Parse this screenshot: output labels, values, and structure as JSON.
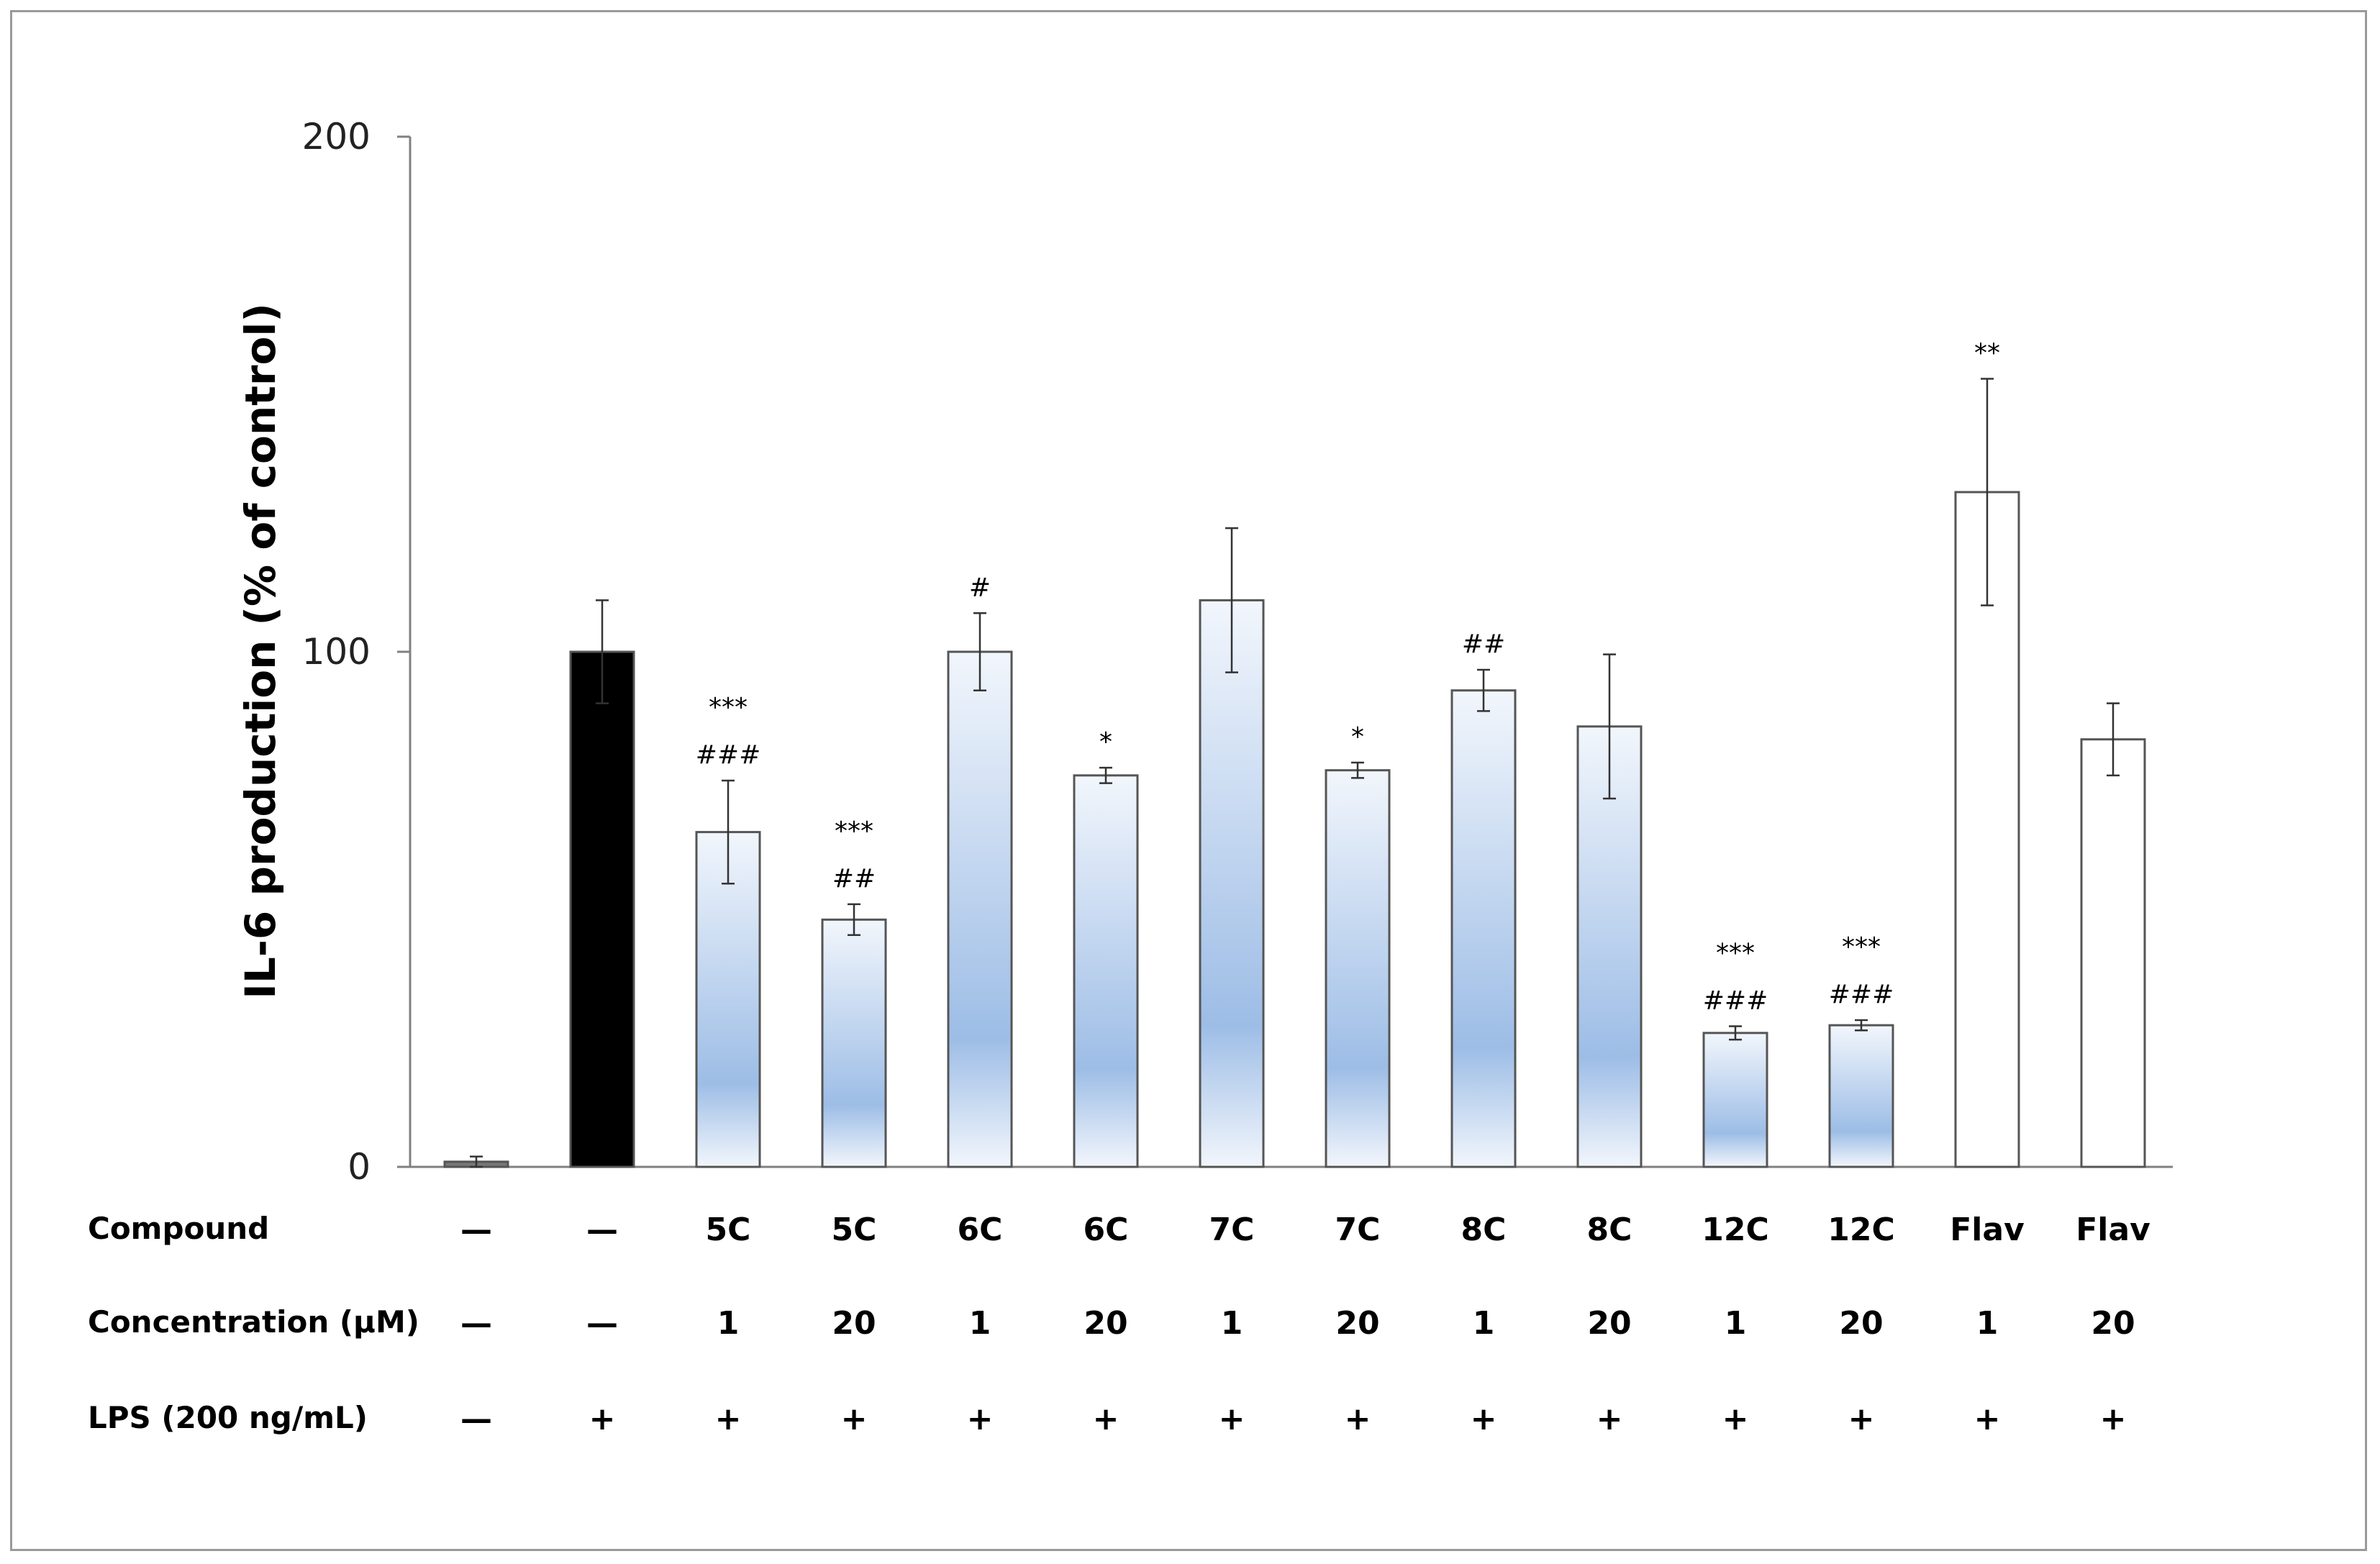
{
  "chart_data": {
    "type": "bar",
    "ylabel": "IL-6 production  (% of control)",
    "ylim": [
      0,
      200
    ],
    "y_ticks": [
      0,
      100,
      200
    ],
    "grid": false,
    "legend": "none",
    "colors": {
      "control": "#777777",
      "lps": "#000000",
      "compound_gradient_top": "#f2f6fc",
      "compound_gradient_mid": "#9dbde6",
      "flav_fill": "#ffffff",
      "outline": "#555555"
    },
    "bars": [
      {
        "value": 1,
        "error": 1,
        "style": "control",
        "marks": []
      },
      {
        "value": 100,
        "error": 10,
        "style": "lps",
        "marks": []
      },
      {
        "value": 65,
        "error": 10,
        "style": "gradient",
        "marks": [
          "***",
          "###"
        ]
      },
      {
        "value": 48,
        "error": 3,
        "style": "gradient",
        "marks": [
          "***",
          "##"
        ]
      },
      {
        "value": 100,
        "error": 7.5,
        "style": "gradient",
        "marks": [
          "#"
        ]
      },
      {
        "value": 76,
        "error": 1.5,
        "style": "gradient",
        "marks": [
          "*"
        ]
      },
      {
        "value": 110,
        "error": 14,
        "style": "gradient",
        "marks": []
      },
      {
        "value": 77,
        "error": 1.5,
        "style": "gradient",
        "marks": [
          "*"
        ]
      },
      {
        "value": 92.5,
        "error": 4,
        "style": "gradient",
        "marks": [
          "##"
        ]
      },
      {
        "value": 85.5,
        "error": 14,
        "style": "gradient",
        "marks": []
      },
      {
        "value": 26,
        "error": 1.3,
        "style": "gradient",
        "marks": [
          "***",
          "###"
        ]
      },
      {
        "value": 27.5,
        "error": 1,
        "style": "gradient",
        "marks": [
          "***",
          "###"
        ]
      },
      {
        "value": 131,
        "error": 22,
        "style": "flav",
        "marks": [
          "**"
        ]
      },
      {
        "value": 83,
        "error": 7,
        "style": "flav",
        "marks": []
      }
    ],
    "table": {
      "rows": [
        {
          "label": "Compound",
          "cells": [
            "—",
            "—",
            "5C",
            "5C",
            "6C",
            "6C",
            "7C",
            "7C",
            "8C",
            "8C",
            "12C",
            "12C",
            "Flav",
            "Flav"
          ]
        },
        {
          "label": "Concentration (μM)",
          "cells": [
            "—",
            "—",
            "1",
            "20",
            "1",
            "20",
            "1",
            "20",
            "1",
            "20",
            "1",
            "20",
            "1",
            "20"
          ]
        },
        {
          "label": "LPS (200 ng/mL)",
          "cells": [
            "—",
            "+",
            "+",
            "+",
            "+",
            "+",
            "+",
            "+",
            "+",
            "+",
            "+",
            "+",
            "+",
            "+"
          ]
        }
      ]
    }
  }
}
